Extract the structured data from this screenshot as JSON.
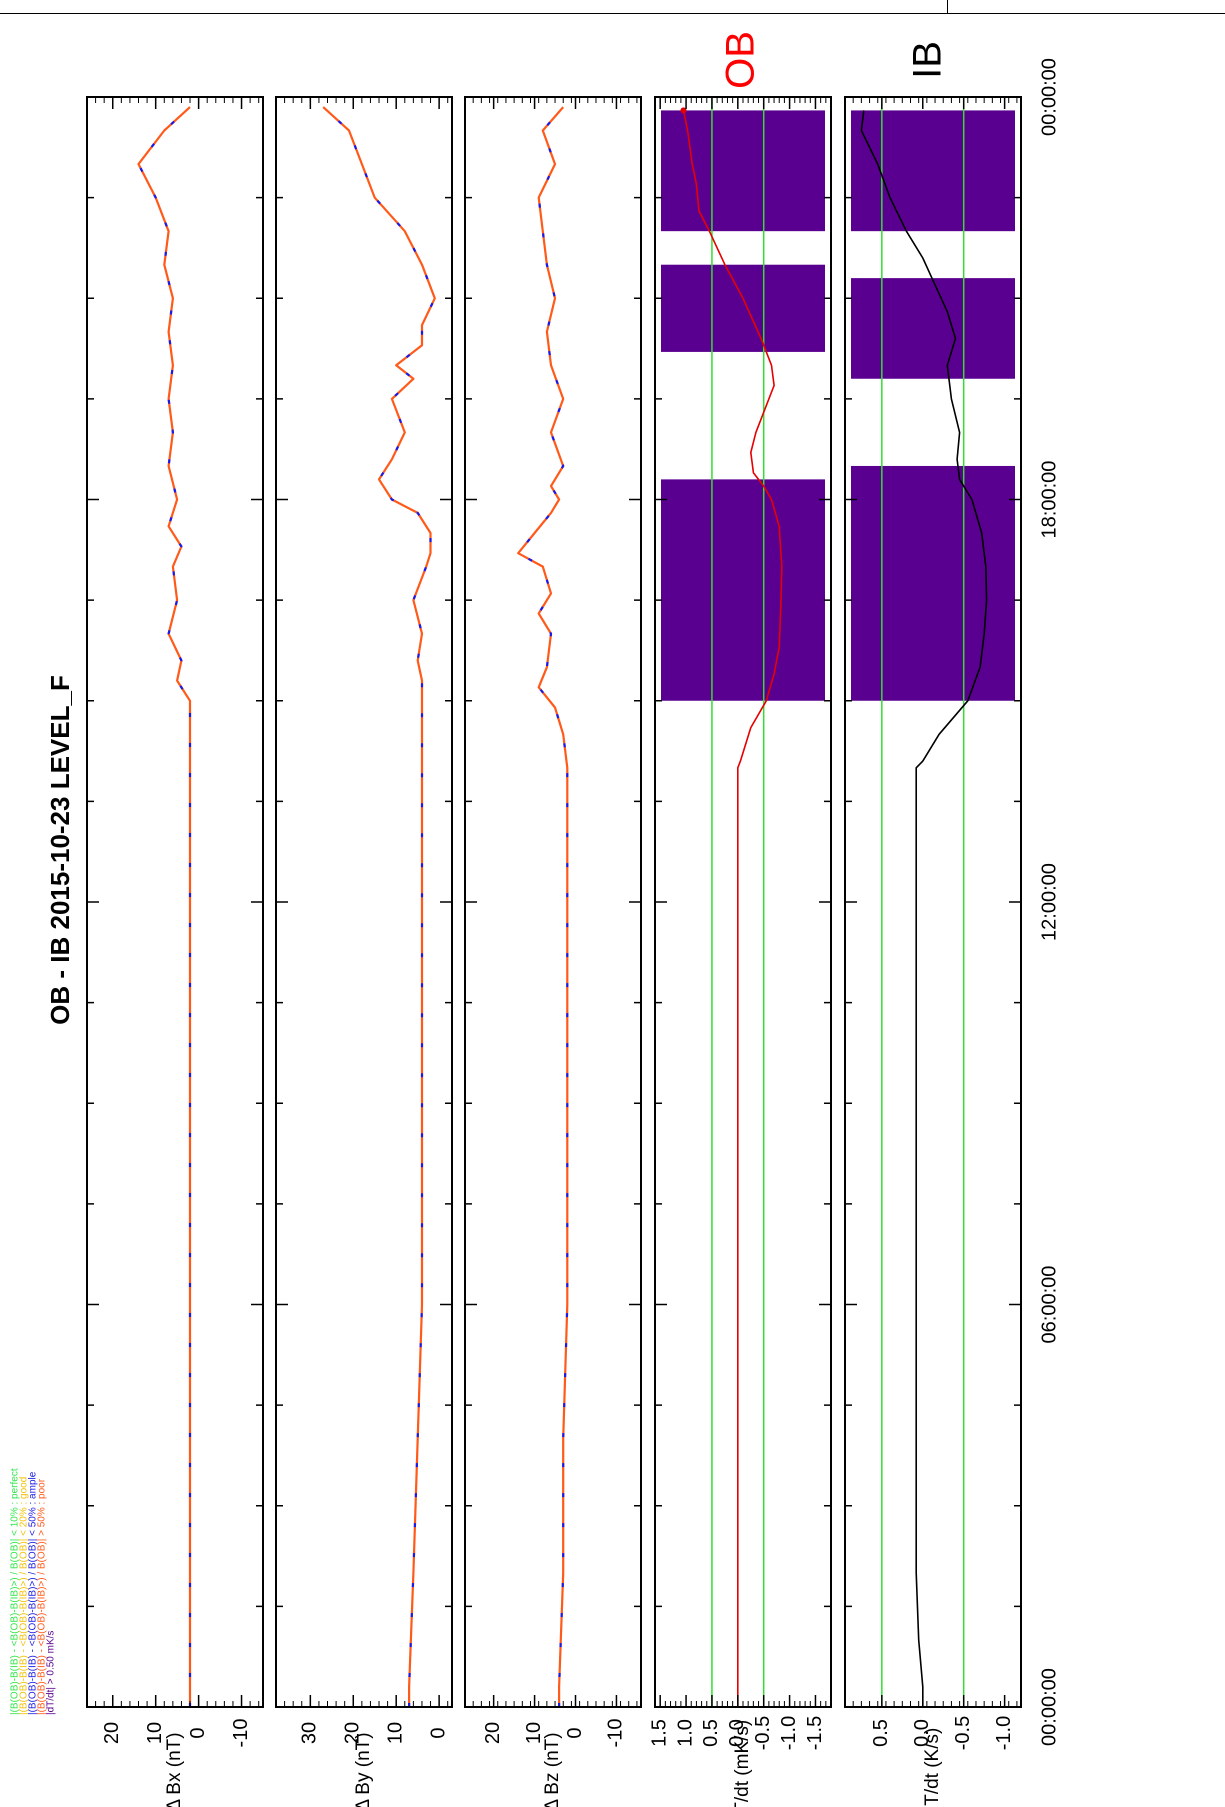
{
  "title": "OB - IB  2015-10-23 LEVEL_F",
  "legend": [
    {
      "text": "|(B(OB)-B(IB) - <B(OB)-B(IB)>) / B(OB)| < 10% : perfect",
      "color": "#33e64d"
    },
    {
      "text": "|(B(OB)-B(IB) - <B(OB)-B(IB)>) / B(OB)| < 20% : good",
      "color": "#f2c20c"
    },
    {
      "text": "|(B(OB)-B(IB) - <B(OB)-B(IB)>) / B(OB)| < 50% : ample",
      "color": "#1a1ae6"
    },
    {
      "text": "|(B(OB)-B(IB) - <B(OB)-B(IB)>) / B(OB)| > 50% : poor",
      "color": "#ff5a1a"
    },
    {
      "text": "|dT/dt|        > 0.50 mK/s",
      "color": "#5a0090"
    }
  ],
  "side_labels": {
    "ob": "OB",
    "ib": "IB"
  },
  "time_ticks": [
    "00:00:00",
    "06:00:00",
    "12:00:00",
    "18:00:00",
    "00:00:00"
  ],
  "colors": {
    "field": "#ff5a1a",
    "field_alt": "#1a1ae6",
    "ob_trace": "#e60000",
    "ib_trace": "#000000",
    "threshold": "#33dd33",
    "flag": "#5a0090",
    "ob_label": "#ff0000",
    "ib_label": "#000000"
  },
  "chart_data": [
    {
      "type": "line",
      "ylabel": "Δ    Bx (nT)",
      "x_unit": "hours (UT)",
      "xlim": [
        0,
        24
      ],
      "ylim": [
        -15,
        26
      ],
      "ytick_labels": [
        "20",
        "10",
        "0",
        "-10"
      ],
      "series": [
        {
          "x": [
            0.0,
            0.5,
            2.0,
            4.0,
            6.0,
            8.0,
            10.0,
            12.0,
            13.0,
            14.0,
            14.5,
            15.0,
            15.3,
            15.6,
            16.0,
            16.5,
            17.0,
            17.3,
            17.6,
            18.0,
            18.5,
            19.0,
            19.5,
            20.0,
            20.5,
            21.0,
            21.5,
            22.0,
            22.5,
            23.0,
            23.5,
            23.85
          ],
          "y": [
            2,
            2,
            2,
            2,
            2,
            2,
            2,
            2,
            2,
            2,
            2,
            2,
            5,
            4,
            7,
            5,
            6,
            4,
            7,
            5,
            7,
            6,
            7,
            6,
            7,
            6,
            8,
            7,
            10,
            14,
            8,
            2
          ]
        }
      ]
    },
    {
      "type": "line",
      "ylabel": "Δ    By (nT)",
      "x_unit": "hours (UT)",
      "xlim": [
        0,
        24
      ],
      "ylim": [
        -3,
        38
      ],
      "ytick_labels": [
        "30",
        "20",
        "10",
        "0"
      ],
      "series": [
        {
          "x": [
            0.0,
            0.3,
            2.0,
            4.0,
            6.0,
            8.0,
            10.0,
            12.0,
            13.0,
            14.0,
            14.5,
            15.0,
            15.3,
            15.6,
            16.0,
            16.5,
            17.0,
            17.2,
            17.5,
            17.8,
            18.0,
            18.3,
            18.6,
            19.0,
            19.5,
            19.8,
            20.0,
            20.3,
            20.6,
            21.0,
            21.5,
            22.0,
            22.5,
            23.0,
            23.5,
            23.85
          ],
          "y": [
            7,
            7,
            6,
            5,
            4,
            4,
            4,
            4,
            4,
            4,
            4,
            4,
            4,
            5,
            4,
            6,
            3,
            2,
            2,
            5,
            11,
            14,
            11,
            8,
            11,
            6,
            10,
            4,
            4,
            1,
            4,
            8,
            15,
            18,
            21,
            27
          ]
        }
      ]
    },
    {
      "type": "line",
      "ylabel": "Δ    Bz (nT)",
      "x_unit": "hours (UT)",
      "xlim": [
        0,
        24
      ],
      "ylim": [
        -16,
        27
      ],
      "ytick_labels": [
        "20",
        "10",
        "0",
        "-10"
      ],
      "series": [
        {
          "x": [
            0.0,
            0.3,
            2.0,
            4.0,
            6.0,
            8.0,
            10.0,
            12.0,
            13.0,
            14.0,
            14.5,
            14.9,
            15.2,
            15.5,
            16.0,
            16.3,
            16.6,
            17.0,
            17.2,
            17.5,
            17.8,
            18.0,
            18.2,
            18.5,
            19.0,
            19.5,
            20.0,
            20.5,
            21.0,
            21.5,
            22.0,
            22.5,
            23.0,
            23.5,
            23.85
          ],
          "y": [
            4,
            4,
            3,
            3,
            2,
            2,
            2,
            2,
            2,
            2,
            3,
            5,
            9,
            7,
            6,
            9,
            6,
            8,
            14,
            10,
            6,
            4,
            6,
            3,
            6,
            3,
            6,
            7,
            5,
            7,
            8,
            9,
            5,
            8,
            3
          ]
        }
      ]
    },
    {
      "type": "line",
      "ylabel": "dT/dt (mK/s)",
      "x_unit": "hours (UT)",
      "xlim": [
        0,
        24
      ],
      "ylim": [
        -1.8,
        1.6
      ],
      "ytick_labels": [
        "1.5",
        "1.0",
        "0.5",
        "0.0",
        "-0.5",
        "-1.0",
        "-1.5"
      ],
      "threshold_lines": [
        0.5,
        -0.5
      ],
      "flag_intervals": [
        [
          15.0,
          18.3
        ],
        [
          20.2,
          21.5
        ],
        [
          22.0,
          23.8
        ]
      ],
      "series": [
        {
          "name": "OB",
          "x": [
            0.0,
            2.0,
            4.0,
            6.0,
            8.0,
            10.0,
            12.0,
            13.5,
            14.0,
            14.1,
            14.6,
            15.0,
            15.4,
            15.8,
            16.4,
            17.0,
            17.6,
            18.0,
            18.2,
            18.4,
            18.7,
            19.0,
            19.4,
            19.7,
            20.0,
            20.4,
            21.0,
            21.5,
            22.0,
            22.3,
            22.7,
            23.0,
            23.5,
            23.8
          ],
          "y": [
            0.0,
            0.0,
            0.0,
            0.0,
            0.0,
            0.0,
            0.0,
            0.0,
            0.0,
            -0.05,
            -0.25,
            -0.55,
            -0.7,
            -0.8,
            -0.83,
            -0.85,
            -0.8,
            -0.65,
            -0.5,
            -0.3,
            -0.25,
            -0.35,
            -0.55,
            -0.7,
            -0.65,
            -0.45,
            -0.1,
            0.25,
            0.55,
            0.75,
            0.8,
            0.88,
            0.97,
            1.05
          ]
        }
      ]
    },
    {
      "type": "line",
      "ylabel": "dT/dt (K/s)",
      "x_unit": "hours (UT)",
      "xlim": [
        0,
        24
      ],
      "ylim": [
        -1.2,
        0.95
      ],
      "ytick_labels": [
        "0.5",
        "0.0",
        "-0.5",
        "-1.0"
      ],
      "threshold_lines": [
        0.5,
        -0.5
      ],
      "flag_intervals": [
        [
          15.0,
          18.5
        ],
        [
          19.8,
          21.3
        ],
        [
          22.0,
          23.8
        ]
      ],
      "series": [
        {
          "name": "IB",
          "x": [
            0.0,
            0.3,
            1.0,
            2.0,
            4.0,
            6.0,
            8.0,
            10.0,
            12.0,
            13.0,
            14.0,
            14.1,
            14.5,
            15.0,
            15.5,
            16.0,
            16.5,
            17.0,
            17.5,
            18.0,
            18.3,
            18.6,
            19.0,
            19.5,
            20.0,
            20.4,
            20.8,
            21.2,
            21.6,
            22.0,
            22.5,
            23.0,
            23.5,
            23.8
          ],
          "y": [
            0.0,
            0.0,
            0.05,
            0.08,
            0.08,
            0.08,
            0.08,
            0.08,
            0.08,
            0.08,
            0.08,
            0.0,
            -0.2,
            -0.55,
            -0.7,
            -0.75,
            -0.78,
            -0.77,
            -0.72,
            -0.6,
            -0.45,
            -0.42,
            -0.45,
            -0.35,
            -0.3,
            -0.4,
            -0.3,
            -0.15,
            0.0,
            0.2,
            0.4,
            0.55,
            0.75,
            0.72
          ]
        }
      ]
    }
  ]
}
